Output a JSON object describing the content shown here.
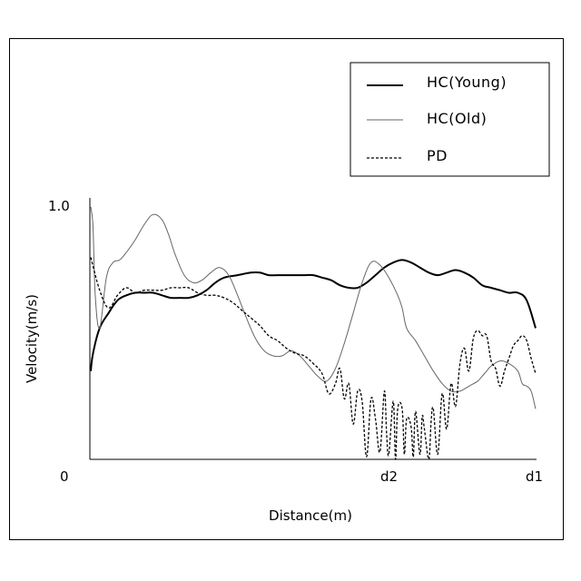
{
  "chart_data": {
    "type": "line",
    "title": "",
    "xlabel": "Distance(m)",
    "ylabel": "Velocity(m/s)",
    "grid": false,
    "legend_position": "top-right",
    "x_ticks": [
      {
        "label": "0",
        "value": 0
      },
      {
        "label": "d2",
        "value": 0.7
      },
      {
        "label": "d1",
        "value": 1.0
      }
    ],
    "y_ticks": [
      {
        "label": "1.0",
        "value": 1.0
      }
    ],
    "xlim": [
      0,
      1
    ],
    "ylim": [
      0,
      1.0
    ],
    "series": [
      {
        "name": "HC(Young)",
        "color": "#000000",
        "style": "solid-thick",
        "x": [
          0.0,
          0.005,
          0.02,
          0.04,
          0.06,
          0.08,
          0.1,
          0.12,
          0.14,
          0.16,
          0.18,
          0.2,
          0.22,
          0.24,
          0.26,
          0.28,
          0.3,
          0.33,
          0.36,
          0.38,
          0.4,
          0.42,
          0.44,
          0.46,
          0.48,
          0.5,
          0.52,
          0.54,
          0.56,
          0.58,
          0.6,
          0.62,
          0.64,
          0.66,
          0.68,
          0.7,
          0.72,
          0.74,
          0.76,
          0.78,
          0.8,
          0.82,
          0.84,
          0.86,
          0.88,
          0.9,
          0.92,
          0.94,
          0.96,
          0.98,
          1.0
        ],
        "y": [
          0.35,
          0.42,
          0.52,
          0.58,
          0.63,
          0.65,
          0.66,
          0.66,
          0.66,
          0.65,
          0.64,
          0.64,
          0.64,
          0.65,
          0.67,
          0.7,
          0.72,
          0.73,
          0.74,
          0.74,
          0.73,
          0.73,
          0.73,
          0.73,
          0.73,
          0.73,
          0.72,
          0.71,
          0.69,
          0.68,
          0.68,
          0.7,
          0.73,
          0.76,
          0.78,
          0.79,
          0.78,
          0.76,
          0.74,
          0.73,
          0.74,
          0.75,
          0.74,
          0.72,
          0.69,
          0.68,
          0.67,
          0.66,
          0.66,
          0.63,
          0.52
        ]
      },
      {
        "name": "HC(Old)",
        "color": "#666666",
        "style": "solid-thin",
        "x": [
          0.0,
          0.005,
          0.01,
          0.02,
          0.035,
          0.05,
          0.065,
          0.08,
          0.1,
          0.12,
          0.14,
          0.16,
          0.175,
          0.19,
          0.21,
          0.23,
          0.25,
          0.27,
          0.29,
          0.31,
          0.33,
          0.35,
          0.37,
          0.39,
          0.41,
          0.43,
          0.45,
          0.47,
          0.49,
          0.51,
          0.53,
          0.55,
          0.57,
          0.59,
          0.61,
          0.63,
          0.65,
          0.67,
          0.69,
          0.7,
          0.71,
          0.73,
          0.75,
          0.77,
          0.79,
          0.81,
          0.83,
          0.85,
          0.87,
          0.88,
          0.89,
          0.9,
          0.92,
          0.94,
          0.96,
          0.97,
          0.98,
          0.99,
          1.0
        ],
        "y": [
          1.0,
          0.92,
          0.65,
          0.52,
          0.72,
          0.78,
          0.79,
          0.82,
          0.87,
          0.93,
          0.97,
          0.95,
          0.89,
          0.81,
          0.73,
          0.7,
          0.71,
          0.74,
          0.76,
          0.73,
          0.65,
          0.56,
          0.48,
          0.43,
          0.41,
          0.41,
          0.43,
          0.41,
          0.37,
          0.33,
          0.31,
          0.36,
          0.46,
          0.58,
          0.7,
          0.78,
          0.77,
          0.72,
          0.65,
          0.6,
          0.52,
          0.47,
          0.41,
          0.35,
          0.3,
          0.27,
          0.27,
          0.29,
          0.31,
          0.33,
          0.35,
          0.37,
          0.39,
          0.38,
          0.35,
          0.3,
          0.29,
          0.27,
          0.2
        ]
      },
      {
        "name": "PD",
        "color": "#000000",
        "style": "dashed",
        "x": [
          0.0,
          0.02,
          0.04,
          0.06,
          0.08,
          0.1,
          0.12,
          0.14,
          0.16,
          0.18,
          0.2,
          0.22,
          0.24,
          0.26,
          0.28,
          0.3,
          0.32,
          0.34,
          0.36,
          0.38,
          0.4,
          0.42,
          0.44,
          0.46,
          0.48,
          0.5,
          0.52,
          0.535,
          0.55,
          0.56,
          0.57,
          0.58,
          0.59,
          0.6,
          0.61,
          0.62,
          0.63,
          0.64,
          0.65,
          0.66,
          0.665,
          0.67,
          0.68,
          0.685,
          0.69,
          0.7,
          0.705,
          0.71,
          0.72,
          0.725,
          0.73,
          0.74,
          0.745,
          0.75,
          0.76,
          0.765,
          0.77,
          0.78,
          0.79,
          0.8,
          0.81,
          0.82,
          0.83,
          0.84,
          0.85,
          0.86,
          0.87,
          0.88,
          0.89,
          0.9,
          0.91,
          0.92,
          0.93,
          0.94,
          0.95,
          0.96,
          0.97,
          0.98,
          0.99,
          1.0
        ],
        "y": [
          0.8,
          0.67,
          0.6,
          0.65,
          0.68,
          0.66,
          0.67,
          0.67,
          0.67,
          0.68,
          0.68,
          0.68,
          0.66,
          0.65,
          0.65,
          0.64,
          0.62,
          0.59,
          0.56,
          0.53,
          0.49,
          0.47,
          0.44,
          0.42,
          0.41,
          0.38,
          0.34,
          0.26,
          0.3,
          0.36,
          0.24,
          0.3,
          0.14,
          0.27,
          0.23,
          0.01,
          0.24,
          0.16,
          0.03,
          0.27,
          0.1,
          0.02,
          0.23,
          0.0,
          0.2,
          0.2,
          0.02,
          0.16,
          0.13,
          0.01,
          0.19,
          0.02,
          0.17,
          0.12,
          0.0,
          0.15,
          0.2,
          0.02,
          0.26,
          0.12,
          0.3,
          0.21,
          0.38,
          0.44,
          0.35,
          0.48,
          0.51,
          0.49,
          0.49,
          0.39,
          0.36,
          0.29,
          0.35,
          0.4,
          0.45,
          0.47,
          0.49,
          0.47,
          0.4,
          0.34
        ]
      }
    ]
  }
}
